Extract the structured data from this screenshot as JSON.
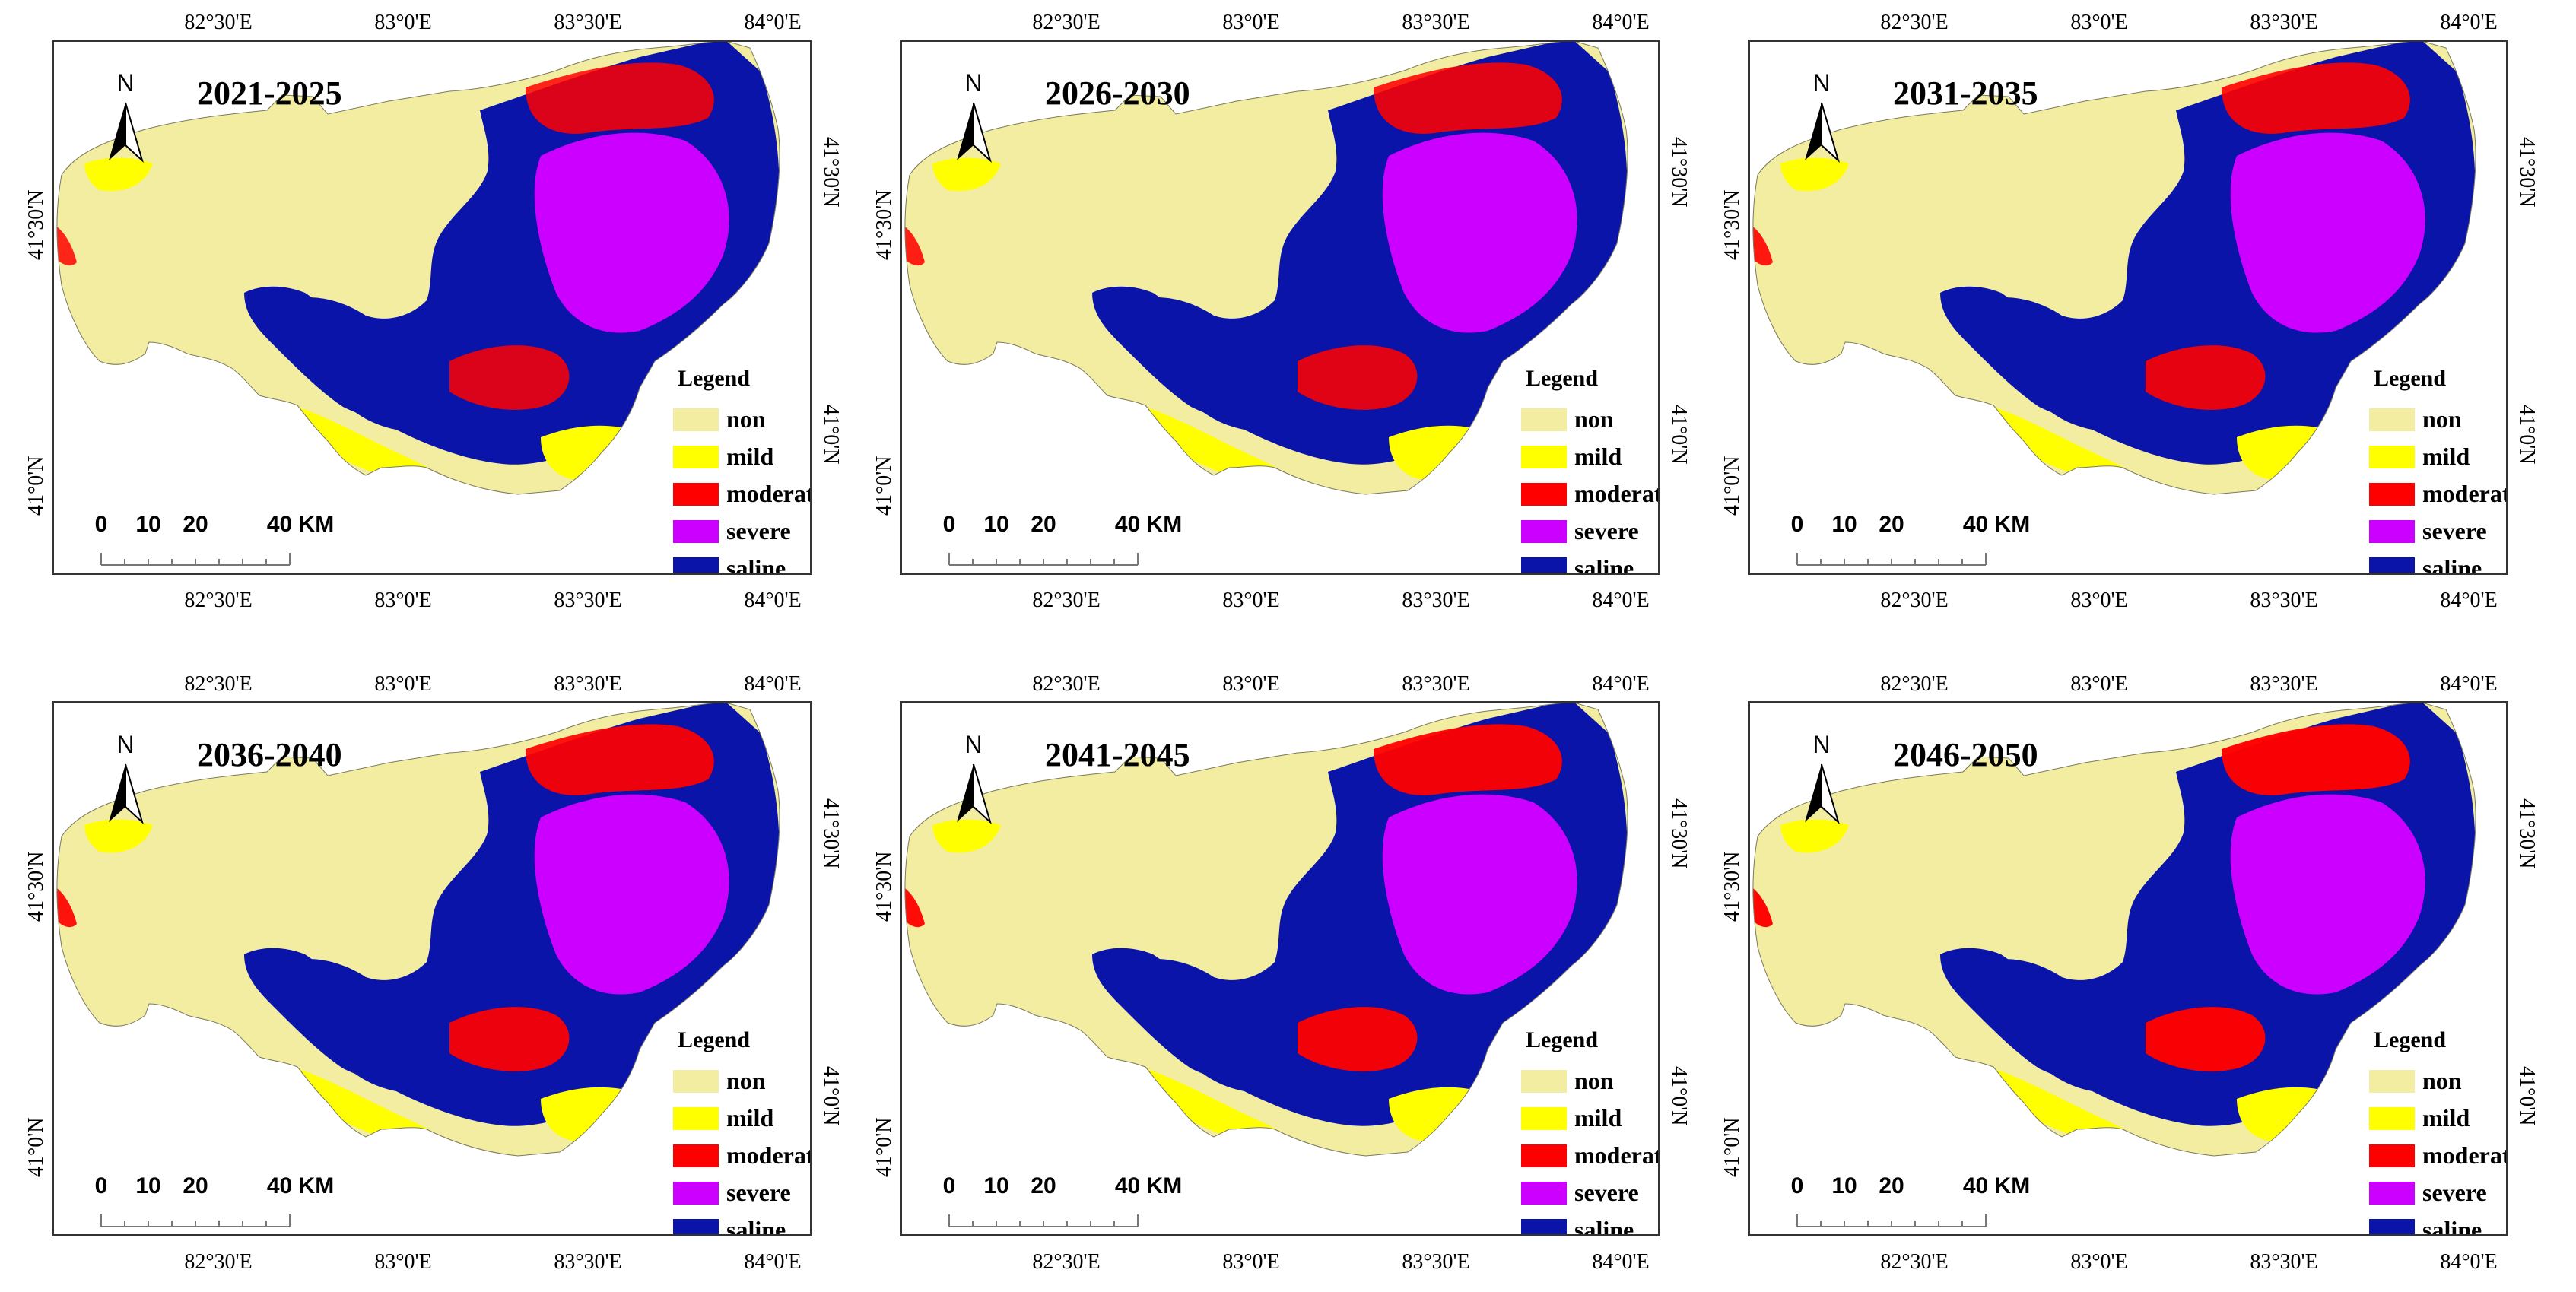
{
  "figure": {
    "legend": {
      "title": "Legend",
      "classes": [
        {
          "label": "non",
          "color": "#f2eda0"
        },
        {
          "label": "mild",
          "color": "#ffff00"
        },
        {
          "label": "moderate",
          "color": "#ff0000"
        },
        {
          "label": "severe",
          "color": "#cc00ff"
        },
        {
          "label": "saline",
          "color": "#0a14a8"
        }
      ]
    },
    "north_arrow": "N",
    "scale_bar": {
      "labels": [
        "0",
        "10",
        "20",
        "40 KM"
      ]
    },
    "longitude_labels": [
      "82°30'E",
      "83°0'E",
      "83°30'E",
      "84°0'E"
    ],
    "latitude_labels": [
      "41°30'N",
      "41°0'N"
    ],
    "panels": [
      {
        "period": "2021-2025"
      },
      {
        "period": "2026-2030"
      },
      {
        "period": "2031-2035"
      },
      {
        "period": "2036-2040"
      },
      {
        "period": "2041-2045"
      },
      {
        "period": "2046-2050"
      }
    ]
  }
}
